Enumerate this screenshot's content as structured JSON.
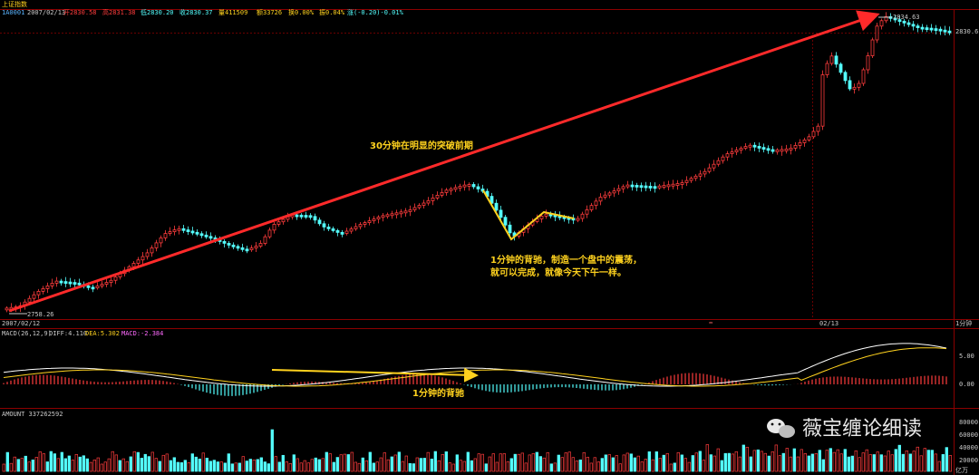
{
  "header": {
    "index_name": "上证指数",
    "code": "1A0001",
    "date": "2007/02/13",
    "open_label": "开2830.58",
    "high_label": "高2831.38",
    "low_label": "低2830.20",
    "close_label": "收2830.37",
    "volume_label": "量411509",
    "amount_label": "额33726",
    "turnover_label": "换0.00%",
    "amplitude_label": "振0.04%",
    "change_label": "涨(-0.20)-0.01%"
  },
  "price_panel": {
    "high_marker": "2834.63",
    "low_marker": "2758.26",
    "right_price": "2830.6",
    "date_left": "2007/02/12",
    "date_mid": "02/13",
    "period_label": "1分钟"
  },
  "annotations": {
    "trend_note": "30分钟在明显的突破前期",
    "divergence_note_line1": "1分钟的背驰，制造一个盘中的震荡，",
    "divergence_note_line2": "就可以完成，就像今天下午一样。",
    "macd_note": "1分钟的背驰"
  },
  "macd_panel": {
    "title": "MACD(26,12,9)",
    "diff_label": "DIFF:4.110",
    "dea_label": "DEA:5.302",
    "macd_label": "MACD:-2.384",
    "ticks": [
      "5.00",
      "0.00"
    ]
  },
  "amount_panel": {
    "title": "AMOUNT 337262592",
    "ticks": [
      "80000",
      "60000",
      "40000",
      "20000"
    ],
    "unit": "亿万"
  },
  "watermark": {
    "text": "薇宝缠论细读",
    "icon": "wechat-icon"
  },
  "colors": {
    "up": "#ff3c3c",
    "down": "#54ffff",
    "arrow": "#ff2a2a",
    "yellow": "#ffd21e",
    "grid": "#7a0000",
    "label_blue": "#5ab4ff"
  }
}
